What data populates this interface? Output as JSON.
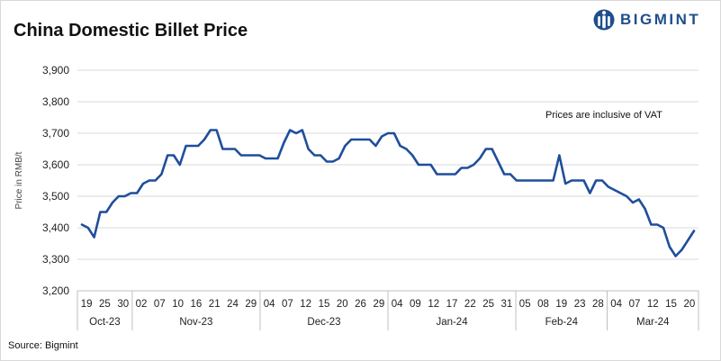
{
  "header": {
    "title": "China Domestic Billet Price"
  },
  "brand": {
    "name": "BIGMINT",
    "color": "#1f4e8c"
  },
  "footer": {
    "source": "Source: Bigmint"
  },
  "chart_data": {
    "type": "line",
    "title": "China Domestic Billet Price",
    "ylabel": "Price in RMB/t",
    "xlabel": "",
    "ylim": [
      3200,
      3900
    ],
    "yticks": [
      "3,200",
      "3,300",
      "3,400",
      "3,500",
      "3,600",
      "3,700",
      "3,800",
      "3,900"
    ],
    "grid": true,
    "line_color": "#1f4e9b",
    "annotation": "Prices are inclusive of VAT",
    "months": [
      {
        "label": "Oct-23",
        "ticks": [
          "19",
          "25",
          "30"
        ]
      },
      {
        "label": "Nov-23",
        "ticks": [
          "02",
          "07",
          "10",
          "16",
          "21",
          "24",
          "29"
        ]
      },
      {
        "label": "Dec-23",
        "ticks": [
          "04",
          "07",
          "12",
          "15",
          "20",
          "26",
          "29"
        ]
      },
      {
        "label": "Jan-24",
        "ticks": [
          "04",
          "09",
          "12",
          "17",
          "22",
          "25",
          "31"
        ]
      },
      {
        "label": "Feb-24",
        "ticks": [
          "05",
          "08",
          "19",
          "23",
          "28"
        ]
      },
      {
        "label": "Mar-24",
        "ticks": [
          "04",
          "07",
          "12",
          "15",
          "20"
        ]
      }
    ],
    "series": [
      {
        "values": [
          3410,
          3400,
          3370,
          3450,
          3450,
          3480,
          3500,
          3500,
          3510,
          3510,
          3540,
          3550,
          3550,
          3570,
          3630,
          3630,
          3600,
          3660,
          3660,
          3660,
          3680,
          3710,
          3710,
          3650,
          3650,
          3650,
          3630,
          3630,
          3630,
          3630,
          3620,
          3620,
          3620,
          3670,
          3710,
          3700,
          3710,
          3650,
          3630,
          3630,
          3610,
          3610,
          3620,
          3660,
          3680,
          3680,
          3680,
          3680,
          3660,
          3690,
          3700,
          3700,
          3660,
          3650,
          3630,
          3600,
          3600,
          3600,
          3570,
          3570,
          3570,
          3570,
          3590,
          3590,
          3600,
          3620,
          3650,
          3650,
          3610,
          3570,
          3570,
          3550,
          3550,
          3550,
          3550,
          3550,
          3550,
          3550,
          3630,
          3540,
          3550,
          3550,
          3550,
          3510,
          3550,
          3550,
          3530,
          3520,
          3510,
          3500,
          3480,
          3490,
          3460,
          3410,
          3410,
          3400,
          3340,
          3310,
          3330,
          3360,
          3390
        ]
      }
    ]
  }
}
